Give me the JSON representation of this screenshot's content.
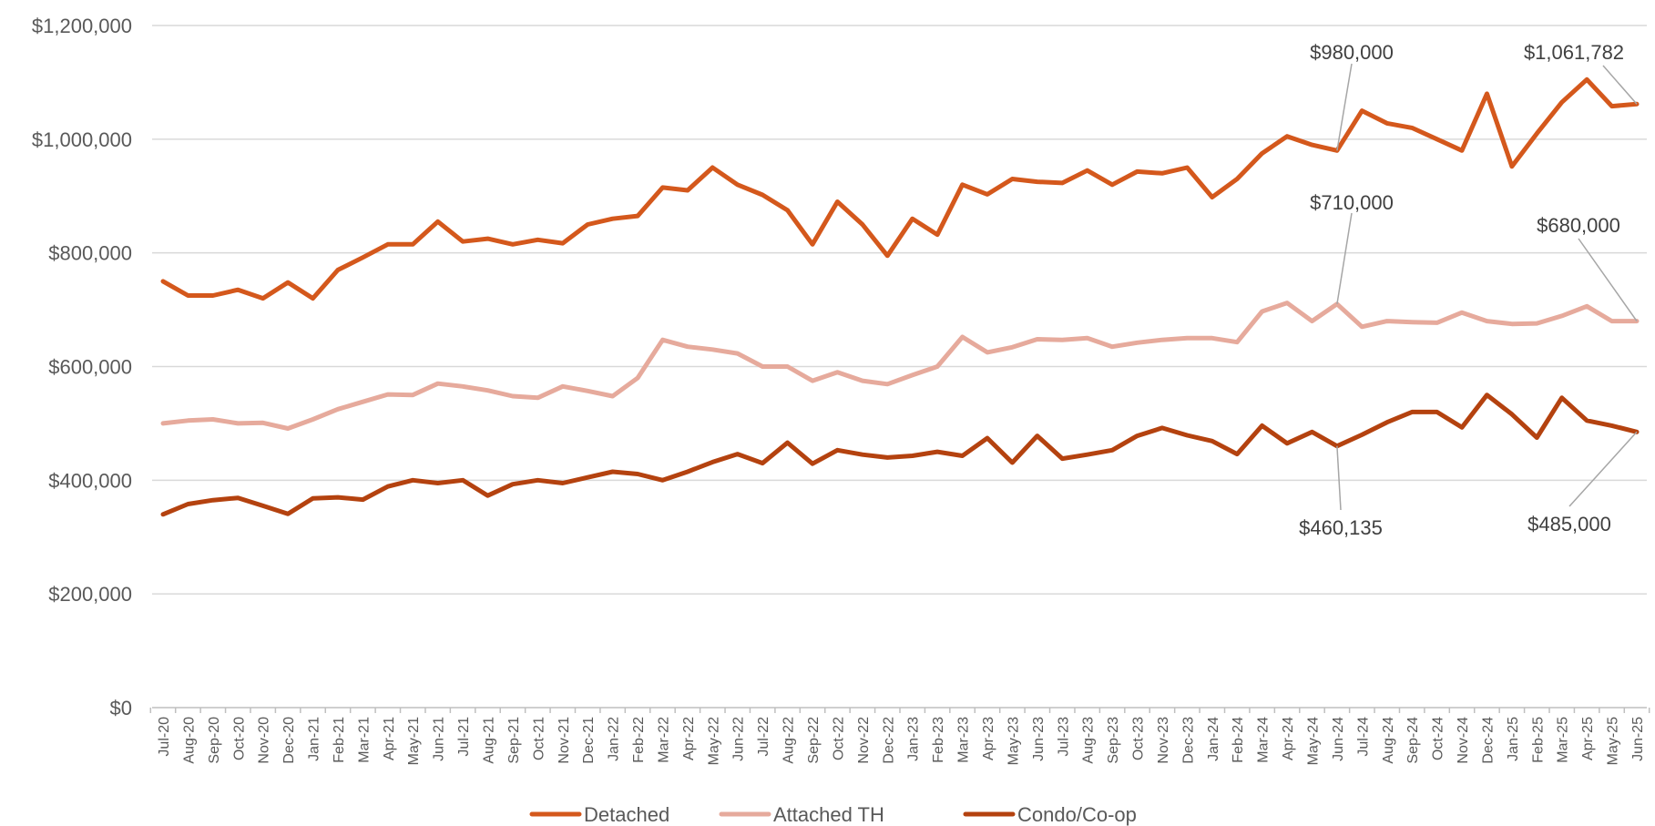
{
  "chart_data": {
    "type": "line",
    "title": "",
    "xlabel": "",
    "ylabel": "",
    "ylim": [
      0,
      1200000
    ],
    "yticks": [
      0,
      200000,
      400000,
      600000,
      800000,
      1000000,
      1200000
    ],
    "ytick_labels": [
      "$0",
      "$200,000",
      "$400,000",
      "$600,000",
      "$800,000",
      "$1,000,000",
      "$1,200,000"
    ],
    "grid": true,
    "legend": "bottom",
    "categories": [
      "Jul-20",
      "Aug-20",
      "Sep-20",
      "Oct-20",
      "Nov-20",
      "Dec-20",
      "Jan-21",
      "Feb-21",
      "Mar-21",
      "Apr-21",
      "May-21",
      "Jun-21",
      "Jul-21",
      "Aug-21",
      "Sep-21",
      "Oct-21",
      "Nov-21",
      "Dec-21",
      "Jan-22",
      "Feb-22",
      "Mar-22",
      "Apr-22",
      "May-22",
      "Jun-22",
      "Jul-22",
      "Aug-22",
      "Sep-22",
      "Oct-22",
      "Nov-22",
      "Dec-22",
      "Jan-23",
      "Feb-23",
      "Mar-23",
      "Apr-23",
      "May-23",
      "Jun-23",
      "Jul-23",
      "Aug-23",
      "Sep-23",
      "Oct-23",
      "Nov-23",
      "Dec-23",
      "Jan-24",
      "Feb-24",
      "Mar-24",
      "Apr-24",
      "May-24",
      "Jun-24",
      "Jul-24",
      "Aug-24",
      "Sep-24",
      "Oct-24",
      "Nov-24",
      "Dec-24",
      "Jan-25",
      "Feb-25",
      "Mar-25",
      "Apr-25",
      "May-25",
      "Jun-25"
    ],
    "series": [
      {
        "name": "Detached",
        "color": "#d4581c",
        "values": [
          750000,
          725000,
          725000,
          735000,
          720000,
          748000,
          720000,
          770000,
          792000,
          815000,
          815000,
          855000,
          820000,
          825000,
          815000,
          823000,
          817000,
          850000,
          860000,
          865000,
          915000,
          910000,
          950000,
          920000,
          902000,
          875000,
          815000,
          890000,
          850000,
          795000,
          860000,
          832000,
          920000,
          903000,
          930000,
          925000,
          923000,
          945000,
          920000,
          943000,
          940000,
          950000,
          898000,
          930000,
          975000,
          1005000,
          990000,
          980000,
          1050000,
          1028000,
          1020000,
          1000000,
          980000,
          1080000,
          952000,
          1010000,
          1065000,
          1105000,
          1058000,
          1061782
        ]
      },
      {
        "name": "Attached TH",
        "color": "#e6aa9c",
        "values": [
          500000,
          505000,
          507000,
          500000,
          501000,
          491000,
          507000,
          525000,
          538000,
          551000,
          550000,
          570000,
          565000,
          558000,
          548000,
          545000,
          565000,
          557000,
          548000,
          580000,
          647000,
          635000,
          630000,
          623000,
          600000,
          600000,
          575000,
          590000,
          575000,
          569000,
          585000,
          600000,
          652000,
          625000,
          634000,
          648000,
          647000,
          650000,
          635000,
          642000,
          647000,
          650000,
          650000,
          643000,
          697000,
          712000,
          680000,
          710000,
          670000,
          680000,
          678000,
          677000,
          695000,
          680000,
          675000,
          676000,
          689000,
          706000,
          680000,
          680000
        ]
      },
      {
        "name": "Condo/Co-op",
        "color": "#b4420f",
        "values": [
          340000,
          358000,
          365000,
          369000,
          355000,
          341000,
          368000,
          370000,
          366000,
          389000,
          400000,
          395000,
          400000,
          373000,
          393000,
          400000,
          395000,
          405000,
          415000,
          411000,
          400000,
          415000,
          432000,
          446000,
          430000,
          466000,
          429000,
          453000,
          445000,
          440000,
          443000,
          450000,
          443000,
          474000,
          431000,
          478000,
          438000,
          445000,
          453000,
          478000,
          492000,
          479000,
          469000,
          446000,
          496000,
          465000,
          485000,
          460135,
          480000,
          502000,
          520000,
          520000,
          493000,
          550000,
          516000,
          475000,
          545000,
          505000,
          496000,
          485000
        ]
      }
    ],
    "annotations": [
      {
        "text": "$980,000",
        "series": 0,
        "index": 47
      },
      {
        "text": "$1,061,782",
        "series": 0,
        "index": 59
      },
      {
        "text": "$710,000",
        "series": 1,
        "index": 47
      },
      {
        "text": "$680,000",
        "series": 1,
        "index": 59
      },
      {
        "text": "$460,135",
        "series": 2,
        "index": 47
      },
      {
        "text": "$485,000",
        "series": 2,
        "index": 59
      }
    ]
  }
}
